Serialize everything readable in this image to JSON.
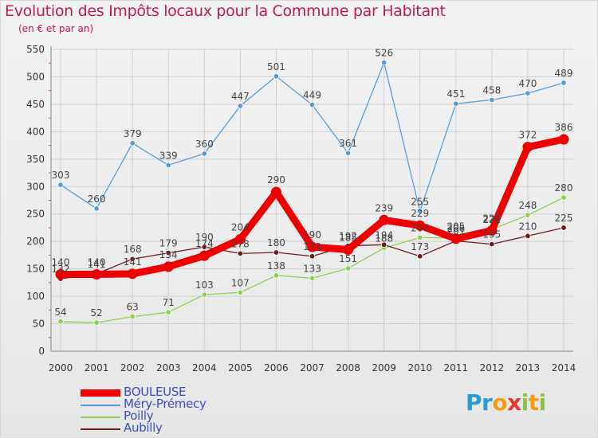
{
  "header": {
    "title": "Evolution des Impôts locaux pour la Commune par Habitant",
    "subtitle": "(en € et par an)"
  },
  "brand": {
    "logo_text": "Proxiti"
  },
  "colors": {
    "title": "#c2185b",
    "legend_text": "#3a4cc4",
    "grid": "#cfcfcf",
    "axis_text": "#333333",
    "value_text": "#444444"
  },
  "chart_data": {
    "type": "line",
    "title": "Evolution des Impôts locaux pour la Commune par Habitant",
    "subtitle": "(en € et par an)",
    "xlabel": "",
    "ylabel": "",
    "ylim": [
      0,
      550
    ],
    "yticks": [
      0,
      50,
      100,
      150,
      200,
      250,
      300,
      350,
      400,
      450,
      500,
      550
    ],
    "grid": true,
    "legend_position": "bottom-left",
    "categories": [
      "2000",
      "2001",
      "2002",
      "2003",
      "2004",
      "2005",
      "2006",
      "2007",
      "2008",
      "2009",
      "2010",
      "2011",
      "2012",
      "2013",
      "2014"
    ],
    "series": [
      {
        "name": "BOULEUSE",
        "color": "#ee0000",
        "values": [
          140,
          140,
          141,
          154,
          174,
          204,
          290,
          190,
          185,
          239,
          229,
          205,
          220,
          372,
          386
        ]
      },
      {
        "name": "Méry-Prémecy",
        "color": "#5b9bd5",
        "values": [
          303,
          260,
          379,
          339,
          360,
          447,
          501,
          449,
          361,
          526,
          255,
          451,
          458,
          470,
          489
        ]
      },
      {
        "name": "Poilly",
        "color": "#8fd14f",
        "values": [
          54,
          52,
          63,
          71,
          103,
          107,
          138,
          133,
          151,
          188,
          207,
          206,
          222,
          248,
          280
        ]
      },
      {
        "name": "Aubilly",
        "color": "#6b1f1f",
        "values": [
          132,
          141,
          168,
          179,
          190,
          178,
          180,
          173,
          192,
          194,
          173,
          201,
          195,
          210,
          225
        ]
      }
    ]
  }
}
